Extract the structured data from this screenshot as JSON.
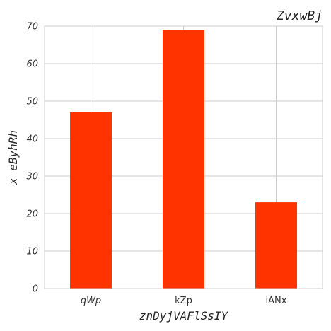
{
  "chart_data": {
    "type": "bar",
    "title": "ZvxwBj",
    "xlabel": "znDyjVAFlSsIY",
    "ylabel": "x eByhRh",
    "categories": [
      "qWp",
      "kZp",
      "iANx"
    ],
    "category_italic": [
      true,
      false,
      false
    ],
    "values": [
      47,
      69,
      23
    ],
    "ylim": [
      0,
      70
    ],
    "yticks": [
      0,
      10,
      20,
      30,
      40,
      50,
      60,
      70
    ],
    "grid": true,
    "bar_color": "#ff3300",
    "grid_color": "#cccccc",
    "background": "#ffffff"
  }
}
